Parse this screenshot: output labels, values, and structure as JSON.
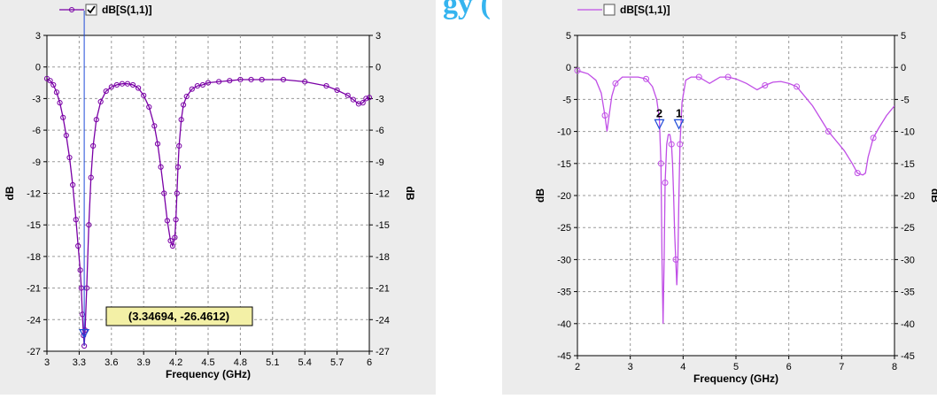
{
  "stray_text": "gy (",
  "chart_data": [
    {
      "type": "line",
      "series": [
        {
          "name": "dB[S(1,1)]",
          "color": "#7a00a6",
          "x": [
            3.0,
            3.03,
            3.06,
            3.09,
            3.12,
            3.15,
            3.18,
            3.21,
            3.24,
            3.27,
            3.29,
            3.31,
            3.32,
            3.33,
            3.34,
            3.347,
            3.355,
            3.37,
            3.39,
            3.41,
            3.43,
            3.46,
            3.5,
            3.55,
            3.6,
            3.65,
            3.7,
            3.75,
            3.8,
            3.85,
            3.9,
            3.95,
            4.0,
            4.03,
            4.06,
            4.09,
            4.12,
            4.15,
            4.17,
            4.19,
            4.2,
            4.21,
            4.22,
            4.23,
            4.25,
            4.27,
            4.3,
            4.35,
            4.4,
            4.45,
            4.5,
            4.6,
            4.7,
            4.8,
            4.9,
            5.0,
            5.2,
            5.4,
            5.6,
            5.7,
            5.8,
            5.85,
            5.9,
            5.94,
            5.97,
            6.0
          ],
          "y": [
            -1.1,
            -1.3,
            -1.7,
            -2.4,
            -3.4,
            -4.8,
            -6.5,
            -8.6,
            -11.2,
            -14.5,
            -17.0,
            -19.3,
            -21.0,
            -23.5,
            -25.5,
            -26.5,
            -25.0,
            -21.0,
            -15.0,
            -10.5,
            -7.5,
            -5.0,
            -3.3,
            -2.3,
            -1.9,
            -1.7,
            -1.6,
            -1.6,
            -1.7,
            -2.0,
            -2.7,
            -3.8,
            -5.6,
            -7.3,
            -9.5,
            -12.0,
            -14.6,
            -16.5,
            -17.0,
            -16.2,
            -14.5,
            -12.0,
            -9.5,
            -7.5,
            -5.0,
            -3.6,
            -2.8,
            -2.1,
            -1.8,
            -1.7,
            -1.5,
            -1.4,
            -1.3,
            -1.2,
            -1.2,
            -1.2,
            -1.2,
            -1.4,
            -1.8,
            -2.2,
            -2.7,
            -3.1,
            -3.5,
            -3.4,
            -3.0,
            -2.9
          ]
        }
      ],
      "xlabel": "Frequency (GHz)",
      "ylabel": "dB",
      "xlim": [
        3.0,
        6.0
      ],
      "ylim": [
        -27,
        3
      ],
      "xticks": [
        "3",
        "3.3",
        "3.6",
        "3.9",
        "4.2",
        "4.5",
        "4.8",
        "5.1",
        "5.4",
        "5.7",
        "6"
      ],
      "yticks": [
        "3",
        "0",
        "-3",
        "-6",
        "-9",
        "-12",
        "-15",
        "-18",
        "-21",
        "-24",
        "-27"
      ],
      "grid": true,
      "legend": "top-left",
      "legend_checked": true,
      "marker": {
        "x": 3.347,
        "y": -26.4612
      },
      "annotation": "(3.34694, -26.4612)"
    },
    {
      "type": "line",
      "series": [
        {
          "name": "dB[S(1,1)]",
          "color": "#c04ee6",
          "x": [
            2.0,
            2.2,
            2.35,
            2.45,
            2.52,
            2.56,
            2.6,
            2.65,
            2.72,
            2.85,
            3.0,
            3.15,
            3.3,
            3.42,
            3.5,
            3.55,
            3.58,
            3.6,
            3.62,
            3.64,
            3.66,
            3.69,
            3.72,
            3.75,
            3.78,
            3.8,
            3.82,
            3.84,
            3.86,
            3.88,
            3.9,
            3.92,
            3.94,
            3.98,
            4.05,
            4.15,
            4.3,
            4.5,
            4.6,
            4.7,
            4.85,
            5.0,
            5.2,
            5.4,
            5.55,
            5.7,
            5.85,
            6.0,
            6.15,
            6.3,
            6.45,
            6.6,
            6.75,
            6.9,
            7.05,
            7.2,
            7.3,
            7.4,
            7.45,
            7.5,
            7.6,
            7.7,
            7.85,
            8.0
          ],
          "y": [
            -0.5,
            -1.0,
            -2.0,
            -4.0,
            -7.5,
            -10.0,
            -7.5,
            -4.5,
            -2.5,
            -1.5,
            -1.5,
            -1.5,
            -1.8,
            -3.0,
            -5.0,
            -8.0,
            -15.0,
            -30.0,
            -40.0,
            -30.0,
            -18.0,
            -12.0,
            -10.5,
            -10.5,
            -12.0,
            -15.0,
            -20.0,
            -26.0,
            -30.0,
            -34.0,
            -30.0,
            -20.0,
            -12.0,
            -5.5,
            -2.0,
            -1.5,
            -1.5,
            -2.5,
            -2.0,
            -1.5,
            -1.5,
            -1.8,
            -2.5,
            -3.5,
            -2.8,
            -2.3,
            -2.2,
            -2.5,
            -3.0,
            -4.5,
            -6.0,
            -8.0,
            -10.0,
            -11.5,
            -13.0,
            -15.0,
            -16.5,
            -16.8,
            -16.5,
            -14.0,
            -11.0,
            -9.5,
            -7.5,
            -6.0
          ]
        }
      ],
      "xlabel": "Frequency (GHz)",
      "ylabel": "dB",
      "xlim": [
        2,
        8
      ],
      "ylim": [
        -45,
        5
      ],
      "xticks": [
        "2",
        "3",
        "4",
        "5",
        "6",
        "7",
        "8"
      ],
      "yticks": [
        "5",
        "0",
        "-5",
        "-10",
        "-15",
        "-20",
        "-25",
        "-30",
        "-35",
        "-40",
        "-45"
      ],
      "grid": true,
      "legend": "top-left",
      "legend_checked": false,
      "markers": [
        {
          "label": "1",
          "x": 3.92,
          "y": -9
        },
        {
          "label": "2",
          "x": 3.55,
          "y": -9
        }
      ]
    }
  ]
}
